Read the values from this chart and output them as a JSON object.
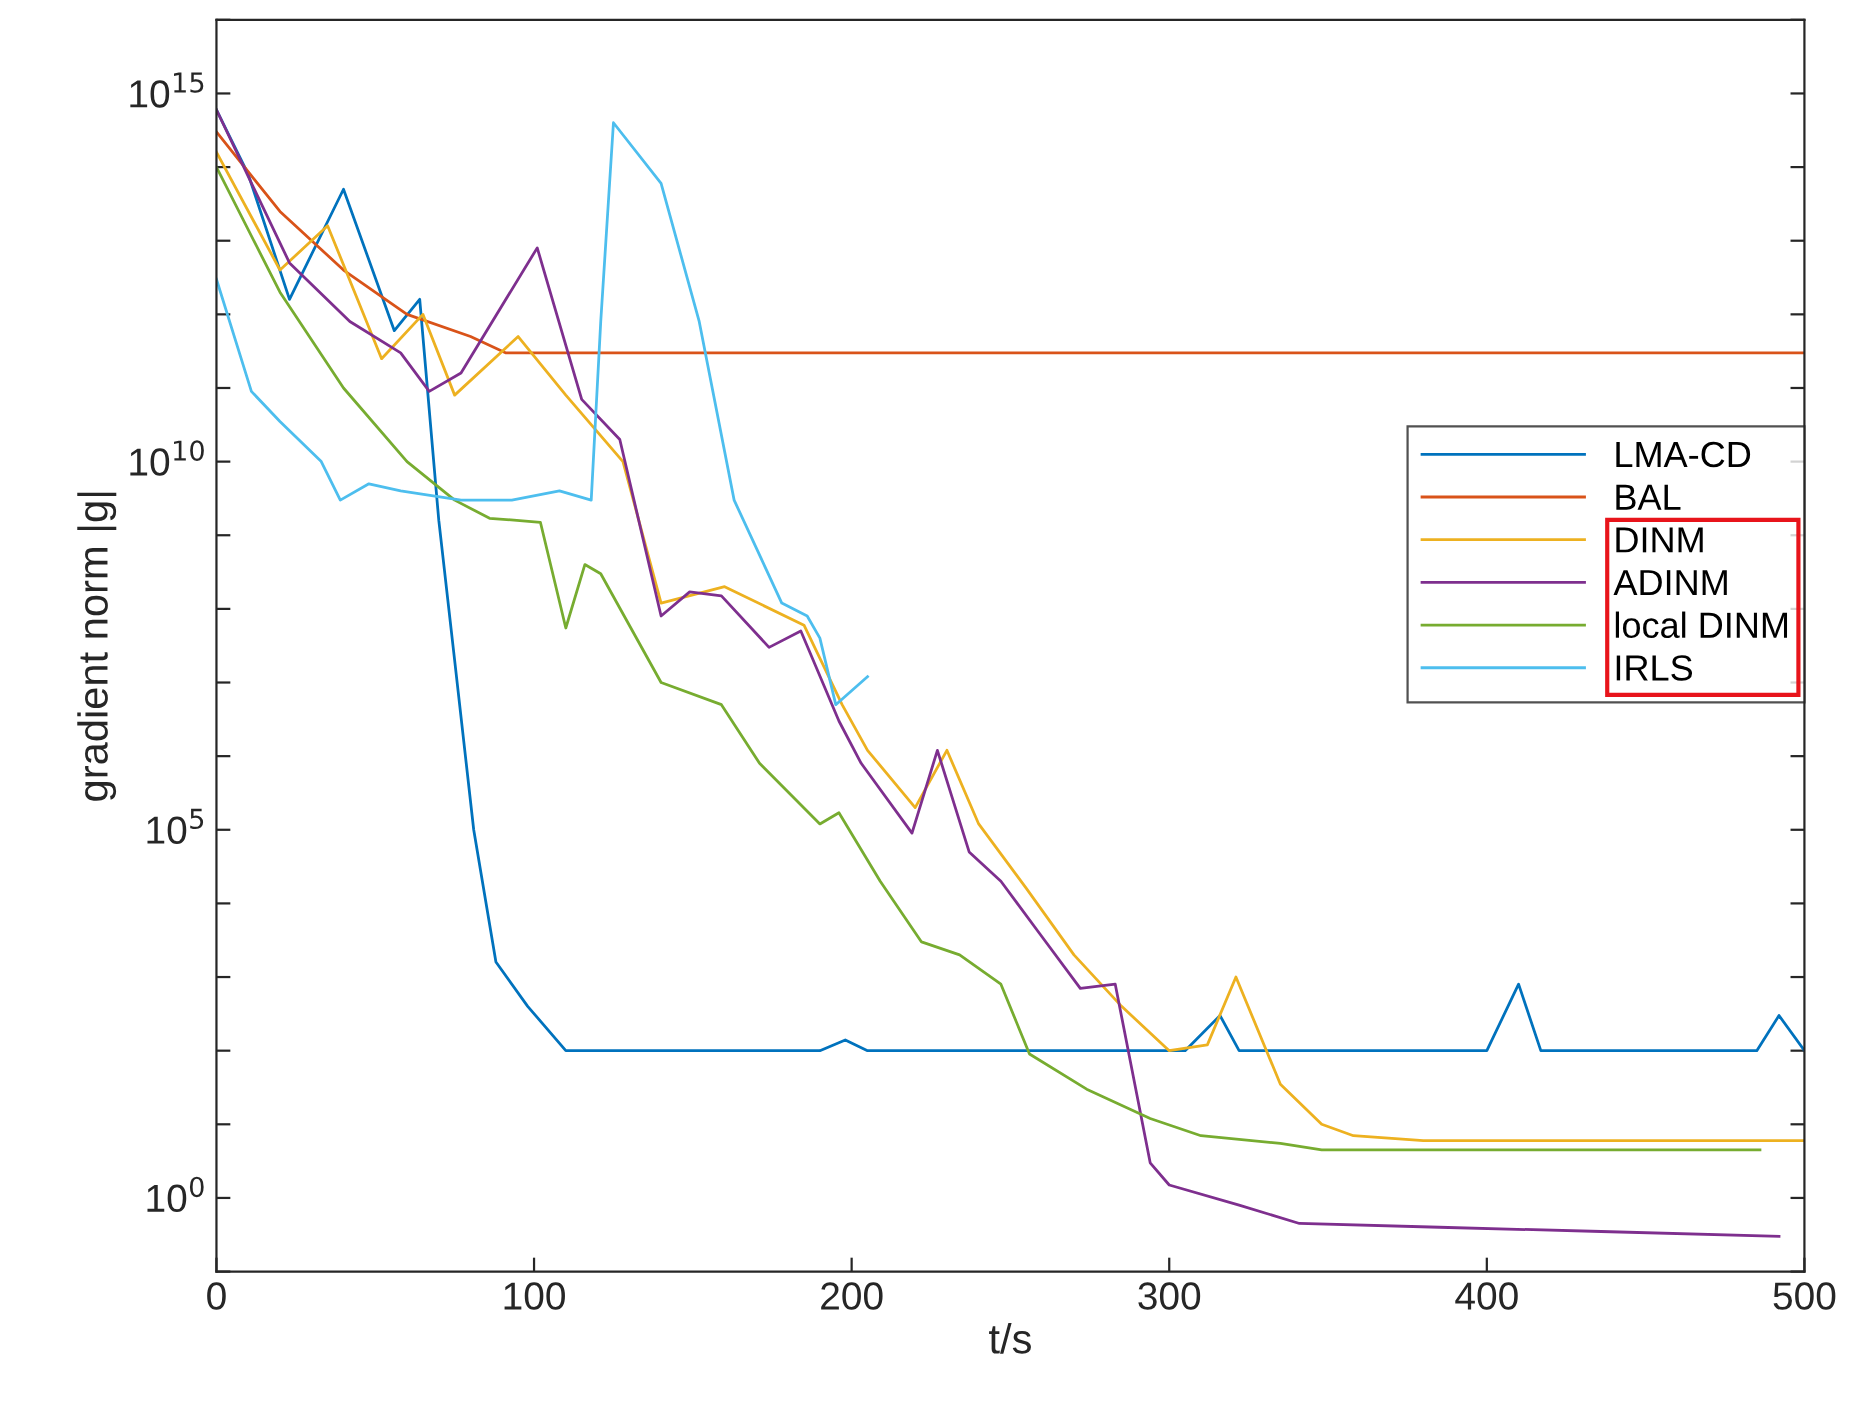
{
  "chart_data": {
    "type": "line",
    "xlabel": "t/s",
    "ylabel": "gradient norm |g|",
    "log": "y",
    "xlim": [
      0,
      500
    ],
    "xticks": [
      0,
      100,
      200,
      300,
      400,
      500
    ],
    "ylim": [
      0.1,
      1e+16
    ],
    "yticks": [
      {
        "value": 0.1,
        "label": null
      },
      {
        "value": 1,
        "label": "10$^{0}$"
      },
      {
        "value": 10,
        "label": null
      },
      {
        "value": 100,
        "label": null
      },
      {
        "value": 1000,
        "label": null
      },
      {
        "value": 10000,
        "label": null
      },
      {
        "value": 100000,
        "label": "10$^{5}$"
      },
      {
        "value": 1000000.0,
        "label": null
      },
      {
        "value": 10000000.0,
        "label": null
      },
      {
        "value": 100000000.0,
        "label": null
      },
      {
        "value": 1000000000.0,
        "label": null
      },
      {
        "value": 10000000000.0,
        "label": "10$^{10}$"
      },
      {
        "value": 100000000000.0,
        "label": null
      },
      {
        "value": 1000000000000.0,
        "label": null
      },
      {
        "value": 10000000000000.0,
        "label": null
      },
      {
        "value": 100000000000000.0,
        "label": null
      },
      {
        "value": 1000000000000000.0,
        "label": "10$^{15}$"
      },
      {
        "value": 1e+16,
        "label": null
      }
    ],
    "grid": false,
    "legend": "right",
    "series": [
      {
        "name": "LMA-CD",
        "color": "#0072bd",
        "x": [
          0,
          10,
          23,
          40,
          56,
          64,
          70,
          75,
          81,
          88,
          98,
          110,
          190,
          198,
          205,
          305,
          316,
          322,
          400,
          410,
          417,
          485,
          492,
          500
        ],
        "values": [
          600000000000000.0,
          80000000000000.0,
          1600000000000.0,
          50000000000000.0,
          600000000000.0,
          1600000000000.0,
          1600000000.0,
          20000000.0,
          100000.0,
          1600.0,
          400,
          100,
          100,
          140,
          100,
          100,
          300,
          100,
          100,
          800,
          100,
          100,
          300,
          100
        ]
      },
      {
        "name": "BAL",
        "color": "#d95319",
        "x": [
          0,
          20,
          40,
          60,
          80,
          91,
          500
        ],
        "values": [
          300000000000000.0,
          25000000000000.0,
          4000000000000.0,
          1000000000000.0,
          500000000000.0,
          300000000000.0,
          300000000000.0
        ]
      },
      {
        "name": "DINM",
        "color": "#edb120",
        "x": [
          0,
          20,
          35,
          52,
          65,
          75,
          95,
          110,
          128,
          140,
          160,
          185,
          197,
          205,
          220,
          230,
          240,
          255,
          270,
          285,
          300,
          312,
          321,
          335,
          348,
          358,
          380,
          500
        ],
        "values": [
          160000000000000.0,
          4000000000000.0,
          16000000000000.0,
          250000000000.0,
          1000000000000.0,
          80000000000.0,
          500000000000.0,
          80000000000.0,
          10000000000.0,
          120000000.0,
          200000000.0,
          60000000.0,
          5000000.0,
          1200000.0,
          200000.0,
          1200000.0,
          120000.0,
          16000.0,
          2000,
          400,
          100,
          120,
          1000,
          35,
          10,
          7,
          6,
          6
        ]
      },
      {
        "name": "ADINM",
        "color": "#7e2f8e",
        "x": [
          0,
          23,
          42,
          58,
          67,
          77,
          101,
          115,
          127,
          140,
          149,
          159,
          174,
          184,
          196,
          203,
          219,
          227,
          237,
          247,
          259,
          272,
          283,
          294,
          300,
          322,
          341,
          385,
          436,
          492
        ],
        "values": [
          600000000000000.0,
          5000000000000.0,
          800000000000.0,
          300000000000.0,
          90000000000.0,
          160000000000.0,
          8000000000000.0,
          70000000000.0,
          20000000000.0,
          80000000.0,
          170000000.0,
          150000000.0,
          30000000.0,
          50000000.0,
          3000000.0,
          800000.0,
          90000.0,
          1200000.0,
          50000.0,
          20000.0,
          4000,
          700,
          800,
          3,
          1.5,
          0.8,
          0.45,
          0.4,
          0.35,
          0.3
        ]
      },
      {
        "name": "local DINM",
        "color": "#77ac30",
        "x": [
          0,
          20,
          40,
          60,
          75,
          86,
          102,
          110,
          116,
          121,
          140,
          159,
          171,
          190,
          196,
          209,
          222,
          234,
          247,
          256,
          274,
          294,
          310,
          335,
          348,
          486
        ],
        "values": [
          100000000000000.0,
          2000000000000.0,
          100000000000.0,
          10000000000.0,
          3000000000.0,
          1700000000.0,
          1500000000.0,
          55000000.0,
          400000000.0,
          300000000.0,
          10000000.0,
          5000000.0,
          800000.0,
          120000.0,
          170000.0,
          20000.0,
          3000,
          2000,
          800,
          90,
          30,
          12,
          7,
          5.5,
          4.5,
          4.5
        ]
      },
      {
        "name": "IRLS",
        "color": "#4dbeee",
        "x": [
          0,
          11,
          20,
          33,
          39,
          48,
          58,
          77,
          93,
          108,
          118,
          121,
          125,
          140,
          152,
          163,
          178,
          186,
          190,
          195,
          205
        ],
        "values": [
          3000000000000.0,
          90000000000.0,
          35000000000.0,
          10000000000.0,
          3000000000.0,
          5000000000.0,
          4000000000.0,
          3000000000.0,
          3000000000.0,
          4000000000.0,
          3000000000.0,
          800000000000.0,
          400000000000000.0,
          60000000000000.0,
          800000000000.0,
          3000000000.0,
          120000000.0,
          80000000.0,
          40000000.0,
          5000000.0,
          12000000.0
        ]
      }
    ]
  }
}
